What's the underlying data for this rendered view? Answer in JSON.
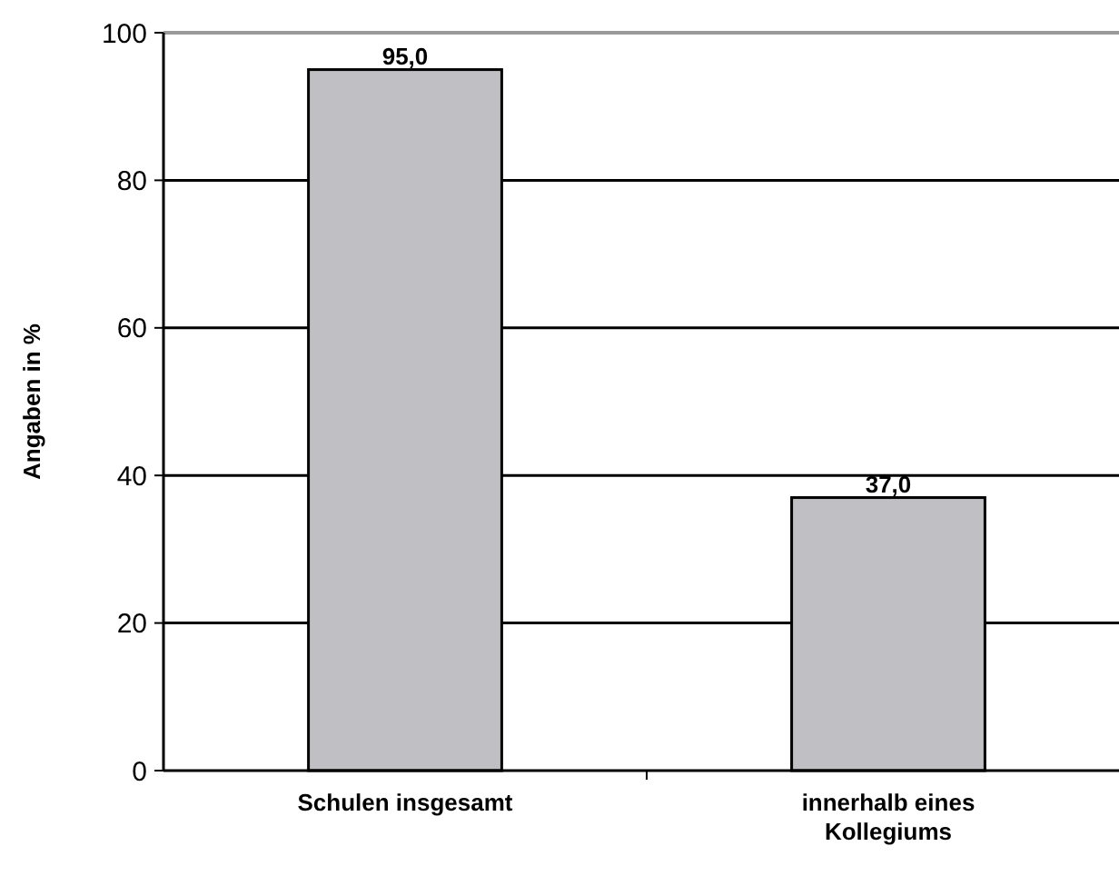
{
  "chart_data": {
    "type": "bar",
    "ylabel": "Angaben in %",
    "categories": [
      "Schulen insgesamt",
      "innerhalb eines Kollegiums"
    ],
    "values": [
      95,
      37
    ],
    "value_labels": [
      "95,0",
      "37,0"
    ],
    "color": "#c0c0c4",
    "ylim": [
      0,
      100
    ],
    "yticks": [
      0,
      20,
      40,
      60,
      80,
      100
    ],
    "grid": "y"
  }
}
